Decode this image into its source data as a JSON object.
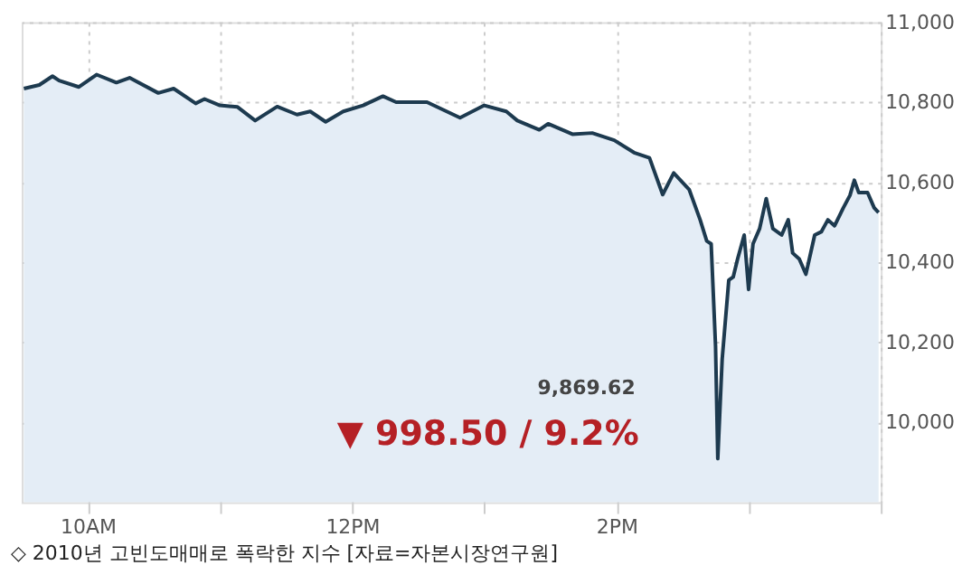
{
  "chart_data": {
    "type": "area",
    "x": [
      "2010-05-06T09:31",
      "2010-05-06T09:38",
      "2010-05-06T09:44",
      "2010-05-06T09:47",
      "2010-05-06T09:56",
      "2010-05-06T10:04",
      "2010-05-06T10:13",
      "2010-05-06T10:19",
      "2010-05-06T10:32",
      "2010-05-06T10:39",
      "2010-05-06T10:49",
      "2010-05-06T10:53",
      "2010-05-06T11:00",
      "2010-05-06T11:08",
      "2010-05-06T11:16",
      "2010-05-06T11:26",
      "2010-05-06T11:35",
      "2010-05-06T11:41",
      "2010-05-06T11:48",
      "2010-05-06T11:56",
      "2010-05-06T12:05",
      "2010-05-06T12:14",
      "2010-05-06T12:20",
      "2010-05-06T12:34",
      "2010-05-06T12:49",
      "2010-05-06T13:00",
      "2010-05-06T13:10",
      "2010-05-06T13:15",
      "2010-05-06T13:25",
      "2010-05-06T13:29",
      "2010-05-06T13:40",
      "2010-05-06T13:49",
      "2010-05-06T13:59",
      "2010-05-06T14:08",
      "2010-05-06T14:15",
      "2010-05-06T14:21",
      "2010-05-06T14:26",
      "2010-05-06T14:33",
      "2010-05-06T14:38",
      "2010-05-06T14:41",
      "2010-05-06T14:43",
      "2010-05-06T14:45",
      "2010-05-06T14:46",
      "2010-05-06T14:48",
      "2010-05-06T14:51",
      "2010-05-06T14:53",
      "2010-05-06T14:55",
      "2010-05-06T14:58",
      "2010-05-06T15:00",
      "2010-05-06T15:02",
      "2010-05-06T15:05",
      "2010-05-06T15:08",
      "2010-05-06T15:11",
      "2010-05-06T15:15",
      "2010-05-06T15:18",
      "2010-05-06T15:20",
      "2010-05-06T15:23",
      "2010-05-06T15:26",
      "2010-05-06T15:30",
      "2010-05-06T15:33",
      "2010-05-06T15:36",
      "2010-05-06T15:39",
      "2010-05-06T15:43",
      "2010-05-06T15:46",
      "2010-05-06T15:48",
      "2010-05-06T15:50",
      "2010-05-06T15:54",
      "2010-05-06T15:57",
      "2010-05-06T15:59"
    ],
    "series": [
      {
        "color": "#1d3a4f",
        "values": [
          10834,
          10843,
          10865,
          10854,
          10838,
          10869,
          10849,
          10861,
          10823,
          10834,
          10797,
          10808,
          10792,
          10788,
          10754,
          10789,
          10769,
          10777,
          10751,
          10777,
          10792,
          10815,
          10800,
          10800,
          10761,
          10792,
          10777,
          10754,
          10731,
          10746,
          10720,
          10723,
          10705,
          10674,
          10661,
          10569,
          10623,
          10582,
          10506,
          10453,
          10446,
          10189,
          9909,
          10158,
          10355,
          10363,
          10408,
          10468,
          10332,
          10446,
          10484,
          10559,
          10484,
          10468,
          10506,
          10423,
          10408,
          10370,
          10468,
          10476,
          10506,
          10491,
          10536,
          10567,
          10605,
          10574,
          10574,
          10536,
          10524
        ]
      }
    ],
    "xlim": [
      "2010-05-06T09:30",
      "2010-05-06T16:00"
    ],
    "xticks": [
      {
        "value": "2010-05-06T10:00",
        "label": "10AM"
      },
      {
        "value": "2010-05-06T11:00",
        "label": null
      },
      {
        "value": "2010-05-06T12:00",
        "label": "12PM"
      },
      {
        "value": "2010-05-06T13:00",
        "label": null
      },
      {
        "value": "2010-05-06T14:00",
        "label": "2PM"
      },
      {
        "value": "2010-05-06T15:00",
        "label": null
      },
      {
        "value": "2010-05-06T16:00",
        "label": null
      }
    ],
    "ylim": [
      9800,
      11000
    ],
    "yticks": [
      {
        "value": 10000,
        "label": "10,000"
      },
      {
        "value": 10200,
        "label": "10,200"
      },
      {
        "value": 10400,
        "label": "10,400"
      },
      {
        "value": 10600,
        "label": "10,600"
      },
      {
        "value": 10800,
        "label": "10,800"
      },
      {
        "value": 11000,
        "label": "11,000"
      }
    ],
    "grid": true,
    "annotations": [
      "9,869.62",
      "▼ 998.50 / 9.2%",
      "◇ 2010년 고빈도매매로 폭락한 지수 [자료=자본시장연구원]"
    ]
  }
}
